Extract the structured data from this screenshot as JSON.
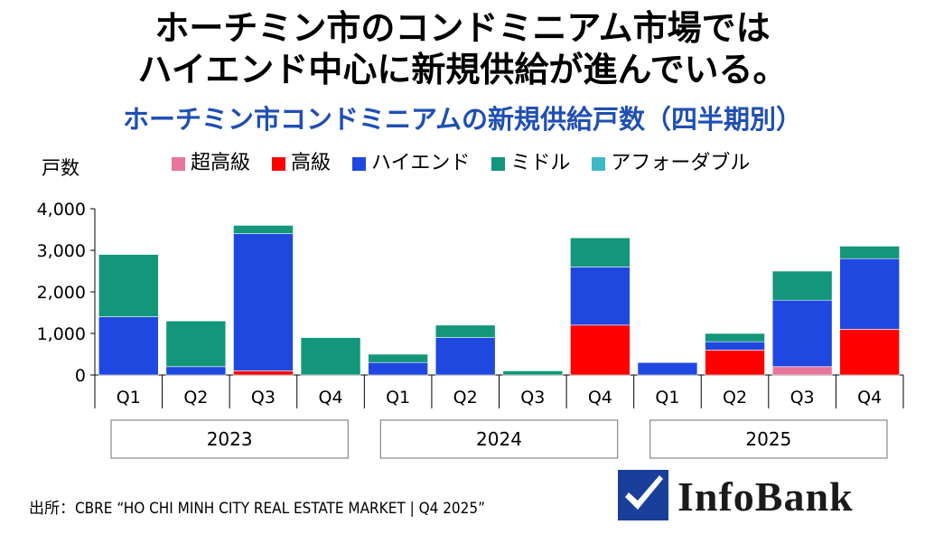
{
  "headline": {
    "line1": "ホーチミン市のコンドミニアム市場では",
    "line2": "ハイエンド中心に新規供給が進んでいる。"
  },
  "chart_data": {
    "type": "bar",
    "stacked": true,
    "title": "ホーチミン市コンドミニアムの新規供給戸数（四半期別）",
    "ylabel": "戸数",
    "xlabel": "",
    "ylim": [
      0,
      4000
    ],
    "yticks": [
      0,
      1000,
      2000,
      3000,
      4000
    ],
    "ytick_labels": [
      "0",
      "1,000",
      "2,000",
      "3,000",
      "4,000"
    ],
    "categories": [
      "Q1",
      "Q2",
      "Q3",
      "Q4",
      "Q1",
      "Q2",
      "Q3",
      "Q4",
      "Q1",
      "Q2",
      "Q3",
      "Q4"
    ],
    "groups": [
      {
        "label": "2023",
        "start": 0,
        "end": 3
      },
      {
        "label": "2024",
        "start": 4,
        "end": 7
      },
      {
        "label": "2025",
        "start": 8,
        "end": 11
      }
    ],
    "series": [
      {
        "name": "超高級",
        "color": "#e8769a",
        "values": [
          0,
          0,
          0,
          0,
          0,
          0,
          0,
          0,
          0,
          0,
          200,
          0
        ]
      },
      {
        "name": "高級",
        "color": "#ff0000",
        "values": [
          0,
          0,
          100,
          0,
          0,
          0,
          0,
          1200,
          0,
          600,
          0,
          1100
        ]
      },
      {
        "name": "ハイエンド",
        "color": "#1f48e0",
        "values": [
          1400,
          200,
          3300,
          0,
          300,
          900,
          0,
          1400,
          300,
          200,
          1600,
          1700
        ]
      },
      {
        "name": "ミドル",
        "color": "#14967a",
        "values": [
          1500,
          1100,
          200,
          900,
          200,
          300,
          100,
          700,
          0,
          200,
          700,
          300
        ]
      },
      {
        "name": "アフォーダブル",
        "color": "#3fb8c8",
        "values": [
          0,
          0,
          0,
          0,
          0,
          0,
          0,
          0,
          0,
          0,
          0,
          0
        ]
      }
    ],
    "legend_position": "top"
  },
  "source": "出所：CBRE “HO CHI MINH CITY REAL ESTATE MARKET | Q4 2025”",
  "logo": {
    "text": "InfoBank",
    "color": "#1a3f9a"
  }
}
